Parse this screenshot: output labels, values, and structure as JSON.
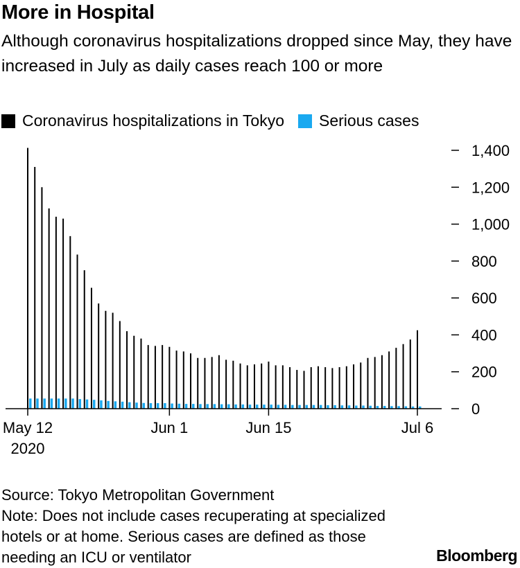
{
  "header": {
    "title": "More in Hospital",
    "subtitle": "Although coronavirus hospitalizations dropped since May, they have increased in July as daily cases reach 100 or more"
  },
  "legend": {
    "series1": "Coronavirus hospitalizations in Tokyo",
    "series2": "Serious cases"
  },
  "colors": {
    "hospital": "#000000",
    "serious": "#1aa9f0"
  },
  "chart_data": {
    "type": "bar",
    "title": "More in Hospital",
    "xlabel": "",
    "ylabel": "",
    "ylim": [
      0,
      1400
    ],
    "yticks": [
      "0",
      "200",
      "400",
      "600",
      "800",
      "1,000",
      "1,200",
      "1,400"
    ],
    "ytick_values": [
      0,
      200,
      400,
      600,
      800,
      1000,
      1200,
      1400
    ],
    "xticks": [
      {
        "label": "May 12",
        "sublabel": "2020",
        "index": 0
      },
      {
        "label": "Jun 1",
        "sublabel": "",
        "index": 20
      },
      {
        "label": "Jun 15",
        "sublabel": "",
        "index": 34
      },
      {
        "label": "Jul 6",
        "sublabel": "",
        "index": 55
      }
    ],
    "series": [
      {
        "name": "Coronavirus hospitalizations in Tokyo",
        "values": [
          1413,
          1310,
          1200,
          1085,
          1040,
          1030,
          935,
          835,
          750,
          655,
          570,
          530,
          520,
          475,
          420,
          395,
          380,
          345,
          340,
          345,
          335,
          315,
          310,
          300,
          275,
          275,
          280,
          290,
          265,
          260,
          245,
          235,
          240,
          245,
          255,
          235,
          235,
          225,
          210,
          205,
          225,
          230,
          225,
          220,
          225,
          230,
          240,
          250,
          275,
          280,
          290,
          310,
          330,
          350,
          375,
          425
        ]
      },
      {
        "name": "Serious cases",
        "values": [
          55,
          55,
          55,
          55,
          55,
          55,
          55,
          52,
          50,
          48,
          45,
          42,
          40,
          38,
          35,
          33,
          31,
          30,
          30,
          30,
          28,
          27,
          26,
          26,
          25,
          25,
          25,
          24,
          24,
          23,
          23,
          22,
          22,
          22,
          22,
          21,
          21,
          20,
          20,
          20,
          20,
          20,
          19,
          19,
          18,
          18,
          17,
          17,
          16,
          15,
          15,
          14,
          14,
          13,
          12,
          12
        ]
      }
    ]
  },
  "footer": {
    "source": "Source: Tokyo Metropolitan Government",
    "note": "Note: Does not include cases recuperating at specialized hotels or at home. Serious cases are defined as those needing an ICU or ventilator"
  },
  "brand": "Bloomberg"
}
